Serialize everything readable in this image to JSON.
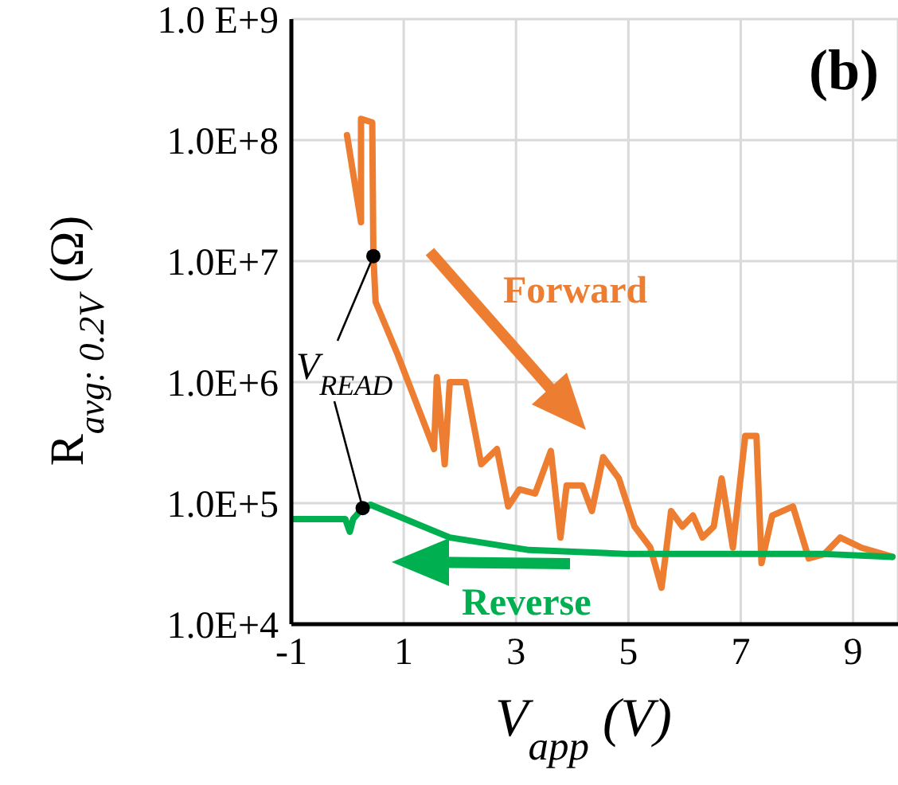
{
  "chart_data": {
    "type": "line",
    "xlabel": "V$_{app}$ (V)",
    "ylabel": "R$_{avg: 0.2V}$ (Ω)",
    "log": "y",
    "grid": true,
    "marker": "none",
    "line_style": "solid",
    "xlim": [
      -1,
      9.8
    ],
    "xticks": [
      -1,
      1,
      3,
      5,
      7,
      9
    ],
    "ylim": [
      10000,
      1000000000
    ],
    "yticks": [
      {
        "value": 10000,
        "label": "1.0E+4"
      },
      {
        "value": 100000,
        "label": "1.0E+5"
      },
      {
        "value": 1000000,
        "label": "1.0E+6"
      },
      {
        "value": 10000000,
        "label": "1.0E+7"
      },
      {
        "value": 100000000,
        "label": "1.0E+8"
      },
      {
        "value": 1000000000,
        "label": "1.0 E+9"
      }
    ],
    "annotations": [
      "(b)",
      "Forward",
      "Reverse",
      {
        "text": "V$_{READ}$",
        "x": 0.46,
        "y": 11000000
      }
    ],
    "series": [
      {
        "color": "#ed7d31",
        "x": [
          -0.01,
          0.24,
          0.24,
          0.44,
          0.46,
          0.5,
          0.89,
          1.54,
          1.59,
          1.73,
          1.82,
          2.1,
          2.38,
          2.66,
          2.86,
          3.06,
          3.34,
          3.62,
          3.79,
          3.9,
          4.18,
          4.35,
          4.55,
          4.83,
          5.11,
          5.39,
          5.59,
          5.76,
          5.96,
          6.15,
          6.32,
          6.52,
          6.66,
          6.86,
          7.08,
          7.28,
          7.37,
          7.56,
          7.93,
          8.21,
          8.49,
          8.77,
          9.14,
          9.7
        ],
        "values": [
          110000000,
          21000000,
          150000000,
          140000000,
          11000000,
          4600000,
          1700000,
          280000,
          1100000,
          210000,
          1000000,
          1000000,
          210000,
          280000,
          94000,
          130000,
          120000,
          270000,
          52000,
          140000,
          140000,
          86000,
          240000,
          160000,
          64000,
          43000,
          20000,
          86000,
          64000,
          79000,
          52000,
          64000,
          160000,
          43000,
          360000,
          360000,
          32000,
          79000,
          94000,
          35000,
          38000,
          52000,
          43000,
          36000
        ]
      },
      {
        "color": "#00b050",
        "x": [
          -1,
          -0.04,
          0.04,
          0.1,
          0.27,
          0.41,
          1.82,
          3.23,
          5,
          7,
          8.5,
          9.7
        ],
        "values": [
          74000,
          74000,
          58000,
          74000,
          91000,
          97000,
          52000,
          41000,
          38000,
          38000,
          38000,
          36000
        ]
      }
    ]
  }
}
